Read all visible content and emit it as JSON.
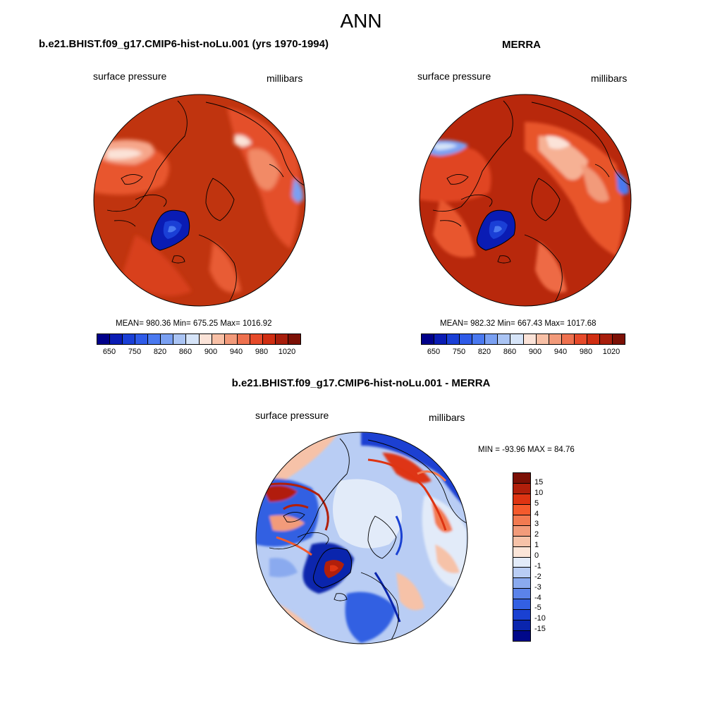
{
  "figure": {
    "season": "ANN"
  },
  "panel_model": {
    "title": "b.e21.BHIST.f09_g17.CMIP6-hist-noLu.001 (yrs 1970-1994)",
    "variable": "surface pressure",
    "units": "millibars",
    "stats": "MEAN= 980.36  Min= 675.25  Max= 1016.92"
  },
  "panel_obs": {
    "title": "MERRA",
    "variable": "surface pressure",
    "units": "millibars",
    "stats": "MEAN= 982.32  Min= 667.43  Max= 1017.68"
  },
  "panel_diff": {
    "title": "b.e21.BHIST.f09_g17.CMIP6-hist-noLu.001 - MERRA",
    "variable": "surface pressure",
    "units": "millibars",
    "stats": "MIN = -93.96 MAX =  84.76"
  },
  "colorbar_abs": {
    "tick_labels": [
      "650",
      "750",
      "820",
      "860",
      "900",
      "940",
      "980",
      "1020"
    ],
    "colors": [
      "#00008a",
      "#0a1cb4",
      "#1a3fd6",
      "#2f5be8",
      "#4a79f0",
      "#7aa0f2",
      "#aac4f4",
      "#d6e4f8",
      "#fbe3d8",
      "#f8c0a6",
      "#f29a7a",
      "#ee714f",
      "#e64a2a",
      "#d02e12",
      "#a81e0c",
      "#7c1005"
    ]
  },
  "colorbar_diff": {
    "tick_labels": [
      "15",
      "10",
      "5",
      "4",
      "3",
      "2",
      "1",
      "0",
      "-1",
      "-2",
      "-3",
      "-4",
      "-5",
      "-10",
      "-15"
    ],
    "colors": [
      "#7c1005",
      "#b11f0b",
      "#de3412",
      "#f45a2c",
      "#f27a51",
      "#f29b7a",
      "#f6c2a8",
      "#fbe5d8",
      "#e2ebf9",
      "#b9cdf4",
      "#8aaaef",
      "#5b83ea",
      "#3360e2",
      "#1a41d2",
      "#0a25ad",
      "#00088a"
    ]
  },
  "chart_data": [
    {
      "type": "heatmap",
      "title": "b.e21.BHIST.f09_g17.CMIP6-hist-noLu.001 (yrs 1970-1994)",
      "variable": "surface pressure",
      "units": "millibars",
      "projection": "north polar stereographic",
      "mean": 980.36,
      "min": 675.25,
      "max": 1016.92,
      "contour_levels": [
        650,
        700,
        750,
        800,
        820,
        840,
        860,
        880,
        900,
        920,
        940,
        960,
        980,
        1000,
        1020
      ]
    },
    {
      "type": "heatmap",
      "title": "MERRA",
      "variable": "surface pressure",
      "units": "millibars",
      "projection": "north polar stereographic",
      "mean": 982.32,
      "min": 667.43,
      "max": 1017.68,
      "contour_levels": [
        650,
        700,
        750,
        800,
        820,
        840,
        860,
        880,
        900,
        920,
        940,
        960,
        980,
        1000,
        1020
      ]
    },
    {
      "type": "heatmap",
      "title": "b.e21.BHIST.f09_g17.CMIP6-hist-noLu.001 - MERRA",
      "variable": "surface pressure",
      "units": "millibars",
      "projection": "north polar stereographic",
      "min": -93.96,
      "max": 84.76,
      "contour_levels": [
        -15,
        -10,
        -5,
        -4,
        -3,
        -2,
        -1,
        0,
        1,
        2,
        3,
        4,
        5,
        10,
        15
      ]
    }
  ]
}
